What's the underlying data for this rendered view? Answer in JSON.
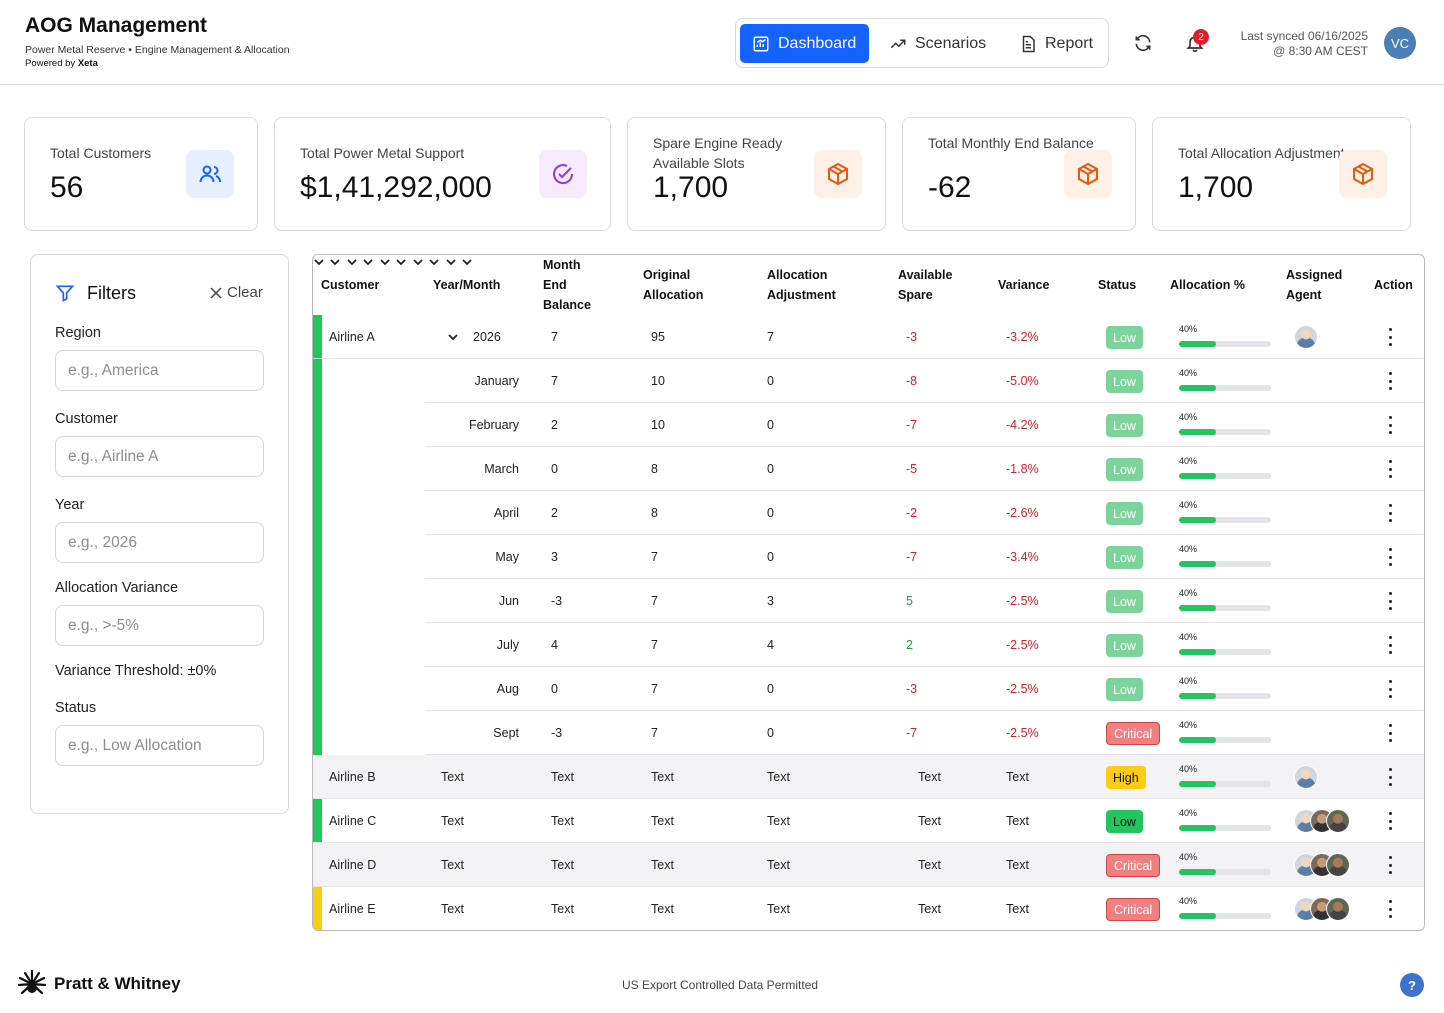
{
  "header": {
    "title": "AOG Management",
    "subtitle": "Power Metal Reserve • Engine Management & Allocation",
    "powered_prefix": "Powered by",
    "powered_brand": "Xeta",
    "nav": [
      {
        "label": "Dashboard",
        "icon": "chart-icon",
        "active": true
      },
      {
        "label": "Scenarios",
        "icon": "trend-icon",
        "active": false
      },
      {
        "label": "Report",
        "icon": "document-icon",
        "active": false
      }
    ],
    "notification_count": "2",
    "sync_line1": "Last synced 06/16/2025",
    "sync_line2": "@ 8:30 AM CEST",
    "user_initials": "VC"
  },
  "stats": [
    {
      "label": "Total Customers",
      "value": "56",
      "icon": "users-icon"
    },
    {
      "label": "Total Power Metal Support",
      "value": "$1,41,292,000",
      "icon": "check-circle-icon"
    },
    {
      "label": "Spare Engine Ready Available Slots",
      "value": "1,700",
      "icon": "package-icon"
    },
    {
      "label": "Total Monthly End Balance",
      "value": "-62",
      "icon": "package-icon"
    },
    {
      "label": "Total Allocation Adjustment",
      "value": "1,700",
      "icon": "package-icon"
    }
  ],
  "filters": {
    "title": "Filters",
    "clear_label": "Clear",
    "region_label": "Region",
    "region_placeholder": "e.g., America",
    "customer_label": "Customer",
    "customer_placeholder": "e.g., Airline A",
    "year_label": "Year",
    "year_placeholder": "e.g., 2026",
    "variance_label": "Allocation Variance",
    "variance_placeholder": "e.g., >-5%",
    "threshold_label": "Variance Threshold: ±0%",
    "status_label": "Status",
    "status_placeholder": "e.g., Low Allocation"
  },
  "table": {
    "headers": {
      "customer": "Customer",
      "year_month": "Year/Month",
      "month_end_1": "Month",
      "month_end_2": "End",
      "month_end_3": "Balance",
      "original_1": "Original",
      "original_2": "Allocation",
      "adjust_1": "Allocation",
      "adjust_2": "Adjustment",
      "spare_1": "Available",
      "spare_2": "Spare",
      "variance": "Variance",
      "status": "Status",
      "alloc_pct": "Allocation %",
      "agent_1": "Assigned",
      "agent_2": "Agent",
      "action": "Action"
    },
    "rows": [
      {
        "customer": "Airline A",
        "period": "2026",
        "meb": "7",
        "orig": "95",
        "adj": "7",
        "spare": "-3",
        "variance": "-3.2%",
        "status": "Low",
        "pct": "40%"
      },
      {
        "customer": "",
        "period": "January",
        "meb": "7",
        "orig": "10",
        "adj": "0",
        "spare": "-8",
        "variance": "-5.0%",
        "status": "Low",
        "pct": "40%"
      },
      {
        "customer": "",
        "period": "February",
        "meb": "2",
        "orig": "10",
        "adj": "0",
        "spare": "-7",
        "variance": "-4.2%",
        "status": "Low",
        "pct": "40%"
      },
      {
        "customer": "",
        "period": "March",
        "meb": "0",
        "orig": "8",
        "adj": "0",
        "spare": "-5",
        "variance": "-1.8%",
        "status": "Low",
        "pct": "40%"
      },
      {
        "customer": "",
        "period": "April",
        "meb": "2",
        "orig": "8",
        "adj": "0",
        "spare": "-2",
        "variance": "-2.6%",
        "status": "Low",
        "pct": "40%"
      },
      {
        "customer": "",
        "period": "May",
        "meb": "3",
        "orig": "7",
        "adj": "0",
        "spare": "-7",
        "variance": "-3.4%",
        "status": "Low",
        "pct": "40%"
      },
      {
        "customer": "",
        "period": "Jun",
        "meb": "-3",
        "orig": "7",
        "adj": "3",
        "spare": "5",
        "variance": "-2.5%",
        "status": "Low",
        "pct": "40%"
      },
      {
        "customer": "",
        "period": "July",
        "meb": "4",
        "orig": "7",
        "adj": "4",
        "spare": "2",
        "variance": "-2.5%",
        "status": "Low",
        "pct": "40%"
      },
      {
        "customer": "",
        "period": "Aug",
        "meb": "0",
        "orig": "7",
        "adj": "0",
        "spare": "-3",
        "variance": "-2.5%",
        "status": "Low",
        "pct": "40%"
      },
      {
        "customer": "",
        "period": "Sept",
        "meb": "-3",
        "orig": "7",
        "adj": "0",
        "spare": "-7",
        "variance": "-2.5%",
        "status": "Critical",
        "pct": "40%"
      },
      {
        "customer": "Airline B",
        "period": "Text",
        "meb": "Text",
        "orig": "Text",
        "adj": "Text",
        "spare": "Text",
        "variance": "Text",
        "status": "High",
        "pct": "40%"
      },
      {
        "customer": "Airline C",
        "period": "Text",
        "meb": "Text",
        "orig": "Text",
        "adj": "Text",
        "spare": "Text",
        "variance": "Text",
        "status": "Low",
        "pct": "40%"
      },
      {
        "customer": "Airline D",
        "period": "Text",
        "meb": "Text",
        "orig": "Text",
        "adj": "Text",
        "spare": "Text",
        "variance": "Text",
        "status": "Critical",
        "pct": "40%"
      },
      {
        "customer": "Airline E",
        "period": "Text",
        "meb": "Text",
        "orig": "Text",
        "adj": "Text",
        "spare": "Text",
        "variance": "Text",
        "status": "Critical",
        "pct": "40%"
      }
    ],
    "allocation_fill": 0.4
  },
  "footer": {
    "brand": "Pratt & Whitney",
    "notice": "US Export Controlled Data Permitted",
    "help": "?"
  },
  "colors": {
    "primary": "#1462ff",
    "negative": "#d81f26",
    "positive": "#2e9c4a",
    "stripe_green": "#22c55e",
    "stripe_red": "#e11d48",
    "stripe_yellow": "#facc15"
  }
}
